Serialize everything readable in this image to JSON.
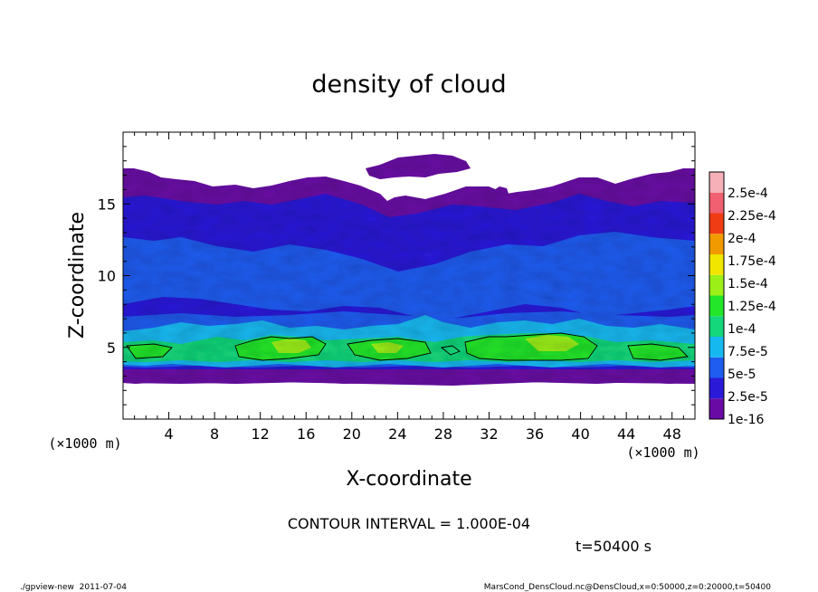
{
  "chart_data": {
    "type": "heatmap",
    "title": "density of cloud",
    "xlabel": "X-coordinate",
    "ylabel": "Z-coordinate",
    "x_unit": "(×1000 m)",
    "y_unit": "(×1000 m)",
    "xlim": [
      0,
      50
    ],
    "ylim": [
      0,
      20
    ],
    "x_ticks": [
      4,
      8,
      12,
      16,
      20,
      24,
      28,
      32,
      36,
      40,
      44,
      48
    ],
    "y_ticks": [
      5,
      10,
      15
    ],
    "colorbar": {
      "labels": [
        "1e-16",
        "2.5e-5",
        "5e-5",
        "7.5e-5",
        "1e-4",
        "1.25e-4",
        "1.5e-4",
        "1.75e-4",
        "2e-4",
        "2.25e-4",
        "2.5e-4"
      ],
      "colors": [
        "#6a0aa5",
        "#2a1ad8",
        "#1f5cf0",
        "#16b8f0",
        "#14d67a",
        "#23e62a",
        "#9cf018",
        "#f0e600",
        "#f09a00",
        "#f03c14",
        "#f06070",
        "#f5b0b8"
      ]
    },
    "contour_interval": "CONTOUR INTERVAL = 1.000E-04",
    "time_label": "t=50400 s",
    "footer_left": "./gpview-new  2011-07-04",
    "footer_right": "MarsCond_DensCloud.nc@DensCloud,x=0:50000,z=0:20000,t=50400"
  }
}
